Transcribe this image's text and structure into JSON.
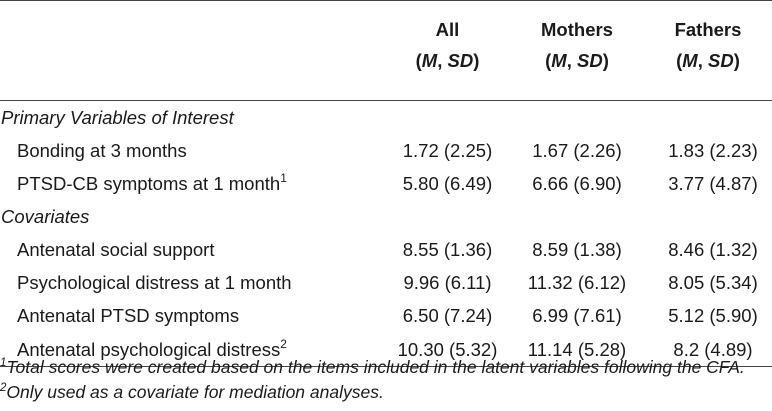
{
  "columns": {
    "all": {
      "label": "All",
      "sub_m": "M",
      "sub_sd": "SD"
    },
    "mothers": {
      "label": "Mothers",
      "sub_m": "M",
      "sub_sd": "SD"
    },
    "fathers": {
      "label": "Fathers",
      "sub_m": "M",
      "sub_sd": "SD"
    }
  },
  "groups": [
    {
      "label": "Primary Variables of Interest",
      "rows": [
        {
          "label": "Bonding at 3 months",
          "sup": "",
          "all": "1.72 (2.25)",
          "mothers": "1.67 (2.26)",
          "fathers": "1.83 (2.23)"
        },
        {
          "label": "PTSD-CB symptoms at 1 month",
          "sup": "1",
          "all": "5.80 (6.49)",
          "mothers": "6.66 (6.90)",
          "fathers": "3.77 (4.87)"
        }
      ]
    },
    {
      "label": "Covariates",
      "rows": [
        {
          "label": "Antenatal social support",
          "sup": "",
          "all": "8.55 (1.36)",
          "mothers": "8.59 (1.38)",
          "fathers": "8.46 (1.32)"
        },
        {
          "label": "Psychological distress at 1 month",
          "sup": "",
          "all": "9.96 (6.11)",
          "mothers": "11.32 (6.12)",
          "fathers": "8.05 (5.34)"
        },
        {
          "label": "Antenatal PTSD symptoms",
          "sup": "",
          "all": "6.50 (7.24)",
          "mothers": "6.99 (7.61)",
          "fathers": "5.12 (5.90)"
        },
        {
          "label": "Antenatal psychological distress",
          "sup": "2",
          "all": "10.30 (5.32)",
          "mothers": "11.14 (5.28)",
          "fathers": "8.2 (4.89)"
        }
      ]
    }
  ],
  "footnote": {
    "marker1": "1",
    "text1": "Total scores were created based on the items included in the latent variables following the CFA.",
    "marker2": "2",
    "text2": "Only used as a covariate for mediation analyses."
  }
}
